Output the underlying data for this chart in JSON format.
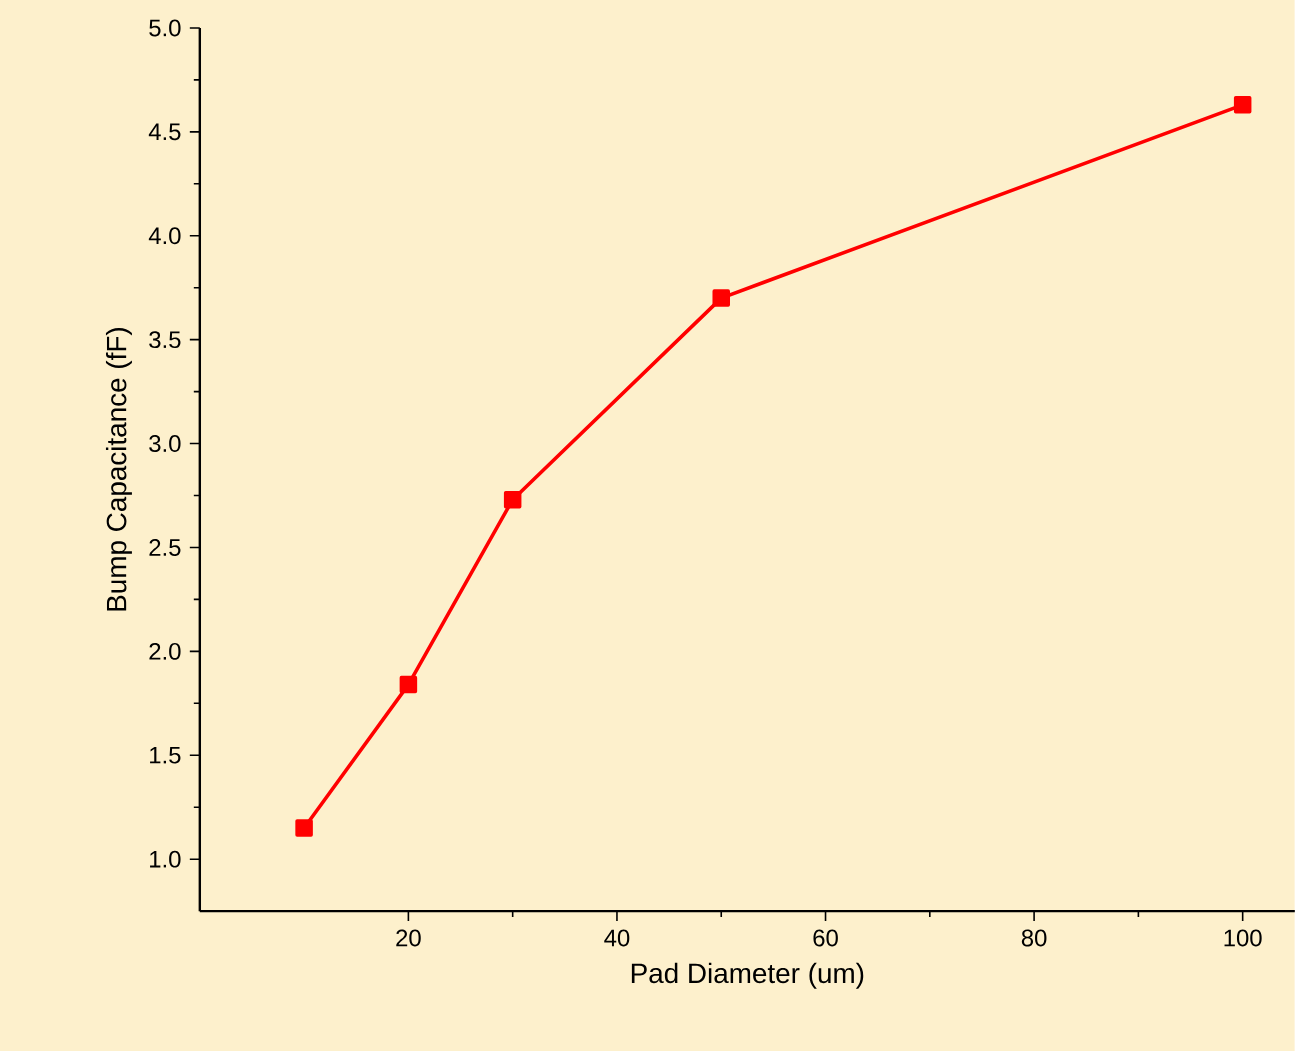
{
  "chart_data": {
    "type": "line",
    "xlabel": "Pad Diameter (um)",
    "ylabel": "Bump Capacitance (fF)",
    "x": [
      10,
      20,
      30,
      50,
      100
    ],
    "series": [
      {
        "color": "#ff0000",
        "values": [
          1.15,
          1.84,
          2.73,
          3.7,
          4.63
        ]
      }
    ],
    "xlim": [
      0,
      105
    ],
    "ylim": [
      0.75,
      5.0
    ],
    "xticks": [
      20,
      40,
      60,
      80,
      100
    ],
    "yticks": [
      {
        "value": 1.0,
        "label": "1.0"
      },
      {
        "value": 1.5,
        "label": "1.5"
      },
      {
        "value": 2.0,
        "label": "2.0"
      },
      {
        "value": 2.5,
        "label": "2.5"
      },
      {
        "value": 3.0,
        "label": "3.0"
      },
      {
        "value": 3.5,
        "label": "3.5"
      },
      {
        "value": 4.0,
        "label": "4.0"
      },
      {
        "value": 4.5,
        "label": "4.5"
      },
      {
        "value": 5.0,
        "label": "5.0"
      }
    ],
    "marker": "square",
    "line_style": "solid",
    "grid": false
  }
}
